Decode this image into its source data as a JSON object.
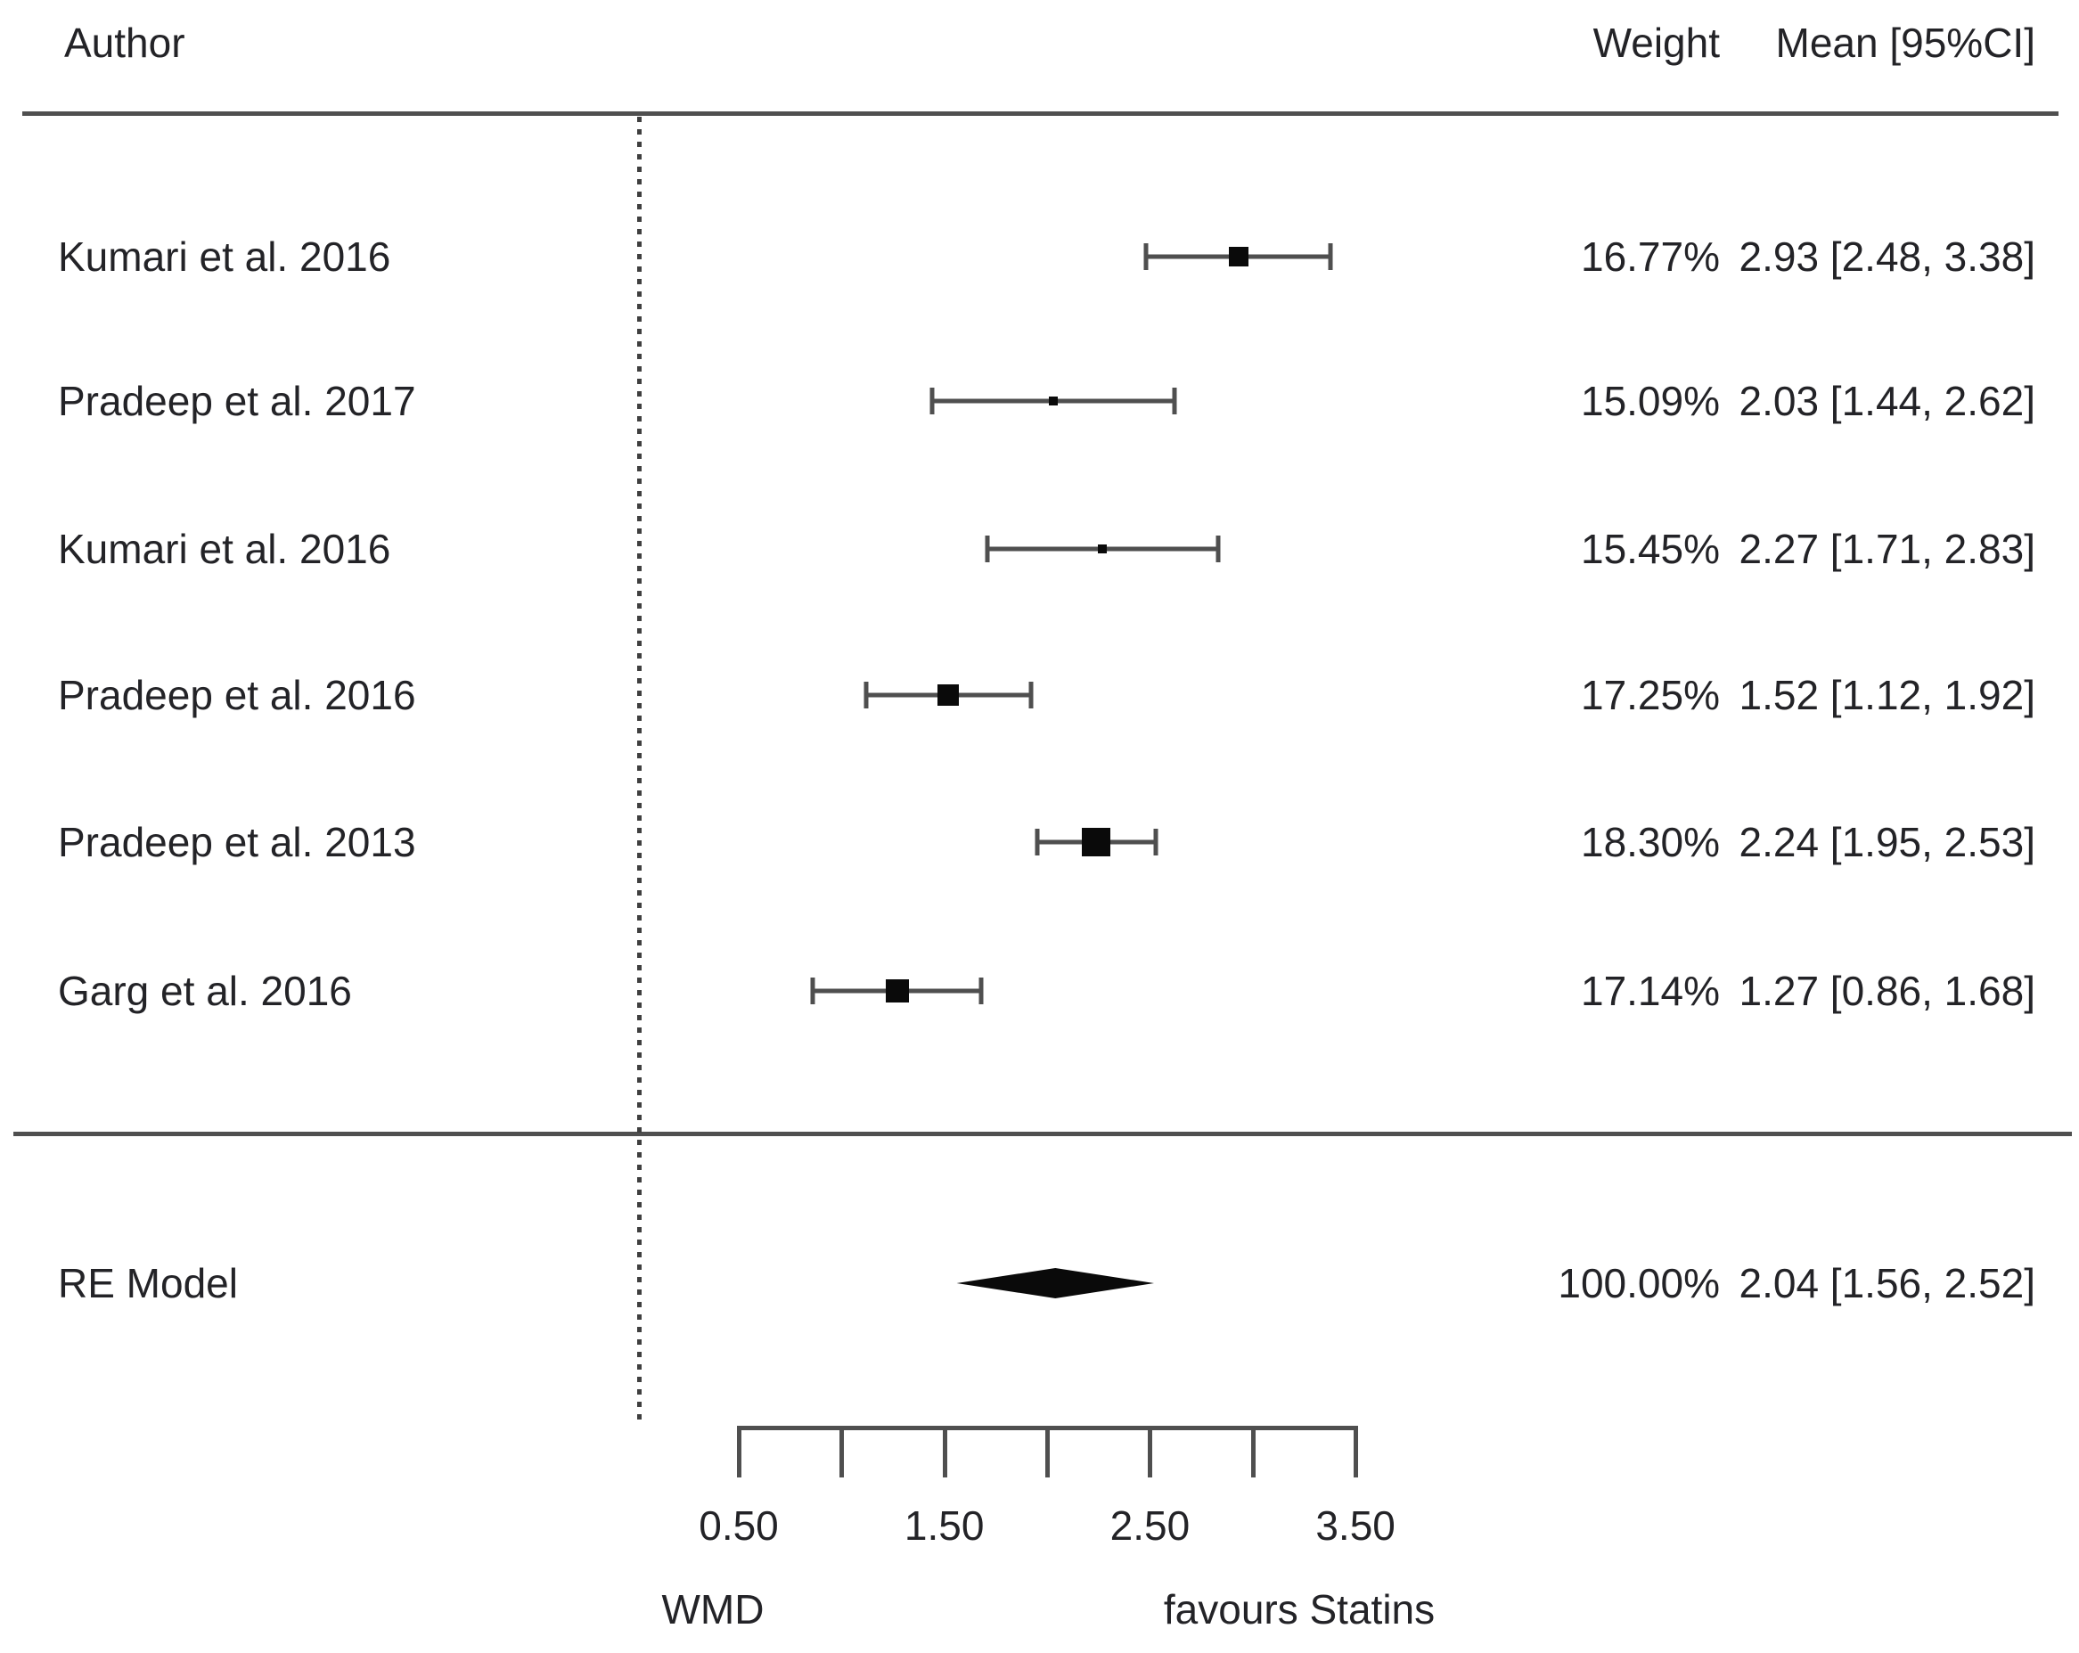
{
  "chart_data": {
    "type": "scatter",
    "subtype": "forest-plot",
    "columns": {
      "author": "Author",
      "weight": "Weight",
      "mean_ci": "Mean [95%CI]"
    },
    "studies": [
      {
        "author": "Kumari et al. 2016",
        "weight": "16.77%",
        "mean": 2.93,
        "ci_low": 2.48,
        "ci_high": 3.38,
        "estimate_label": "2.93 [2.48, 3.38]",
        "marker_px": 22
      },
      {
        "author": "Pradeep et al. 2017",
        "weight": "15.09%",
        "mean": 2.03,
        "ci_low": 1.44,
        "ci_high": 2.62,
        "estimate_label": "2.03 [1.44, 2.62]",
        "marker_px": 10
      },
      {
        "author": "Kumari et al. 2016",
        "weight": "15.45%",
        "mean": 2.27,
        "ci_low": 1.71,
        "ci_high": 2.83,
        "estimate_label": "2.27 [1.71, 2.83]",
        "marker_px": 10
      },
      {
        "author": "Pradeep et al. 2016",
        "weight": "17.25%",
        "mean": 1.52,
        "ci_low": 1.12,
        "ci_high": 1.92,
        "estimate_label": "1.52 [1.12, 1.92]",
        "marker_px": 24
      },
      {
        "author": "Pradeep et al. 2013",
        "weight": "18.30%",
        "mean": 2.24,
        "ci_low": 1.95,
        "ci_high": 2.53,
        "estimate_label": "2.24 [1.95, 2.53]",
        "marker_px": 32
      },
      {
        "author": "Garg et al. 2016",
        "weight": "17.14%",
        "mean": 1.27,
        "ci_low": 0.86,
        "ci_high": 1.68,
        "estimate_label": "1.27 [0.86, 1.68]",
        "marker_px": 26
      }
    ],
    "summary": {
      "label": "RE Model",
      "weight": "100.00%",
      "mean": 2.04,
      "ci_low": 1.56,
      "ci_high": 2.52,
      "estimate_label": "2.04 [1.56, 2.52]"
    },
    "x_axis": {
      "range": [
        0.5,
        3.5
      ],
      "ticks": [
        {
          "v": 0.5,
          "label": "0.50"
        },
        {
          "v": 1.0,
          "label": ""
        },
        {
          "v": 1.5,
          "label": "1.50"
        },
        {
          "v": 2.0,
          "label": ""
        },
        {
          "v": 2.5,
          "label": "2.50"
        },
        {
          "v": 3.0,
          "label": ""
        },
        {
          "v": 3.5,
          "label": "3.50"
        }
      ],
      "xlabel": "WMD",
      "direction_label": "favours Statins",
      "reference_line": 0
    },
    "colors": {
      "marker": "#0a0a0a",
      "line": "#4f4f4f",
      "text": "#232327",
      "background": "#ffffff"
    }
  }
}
